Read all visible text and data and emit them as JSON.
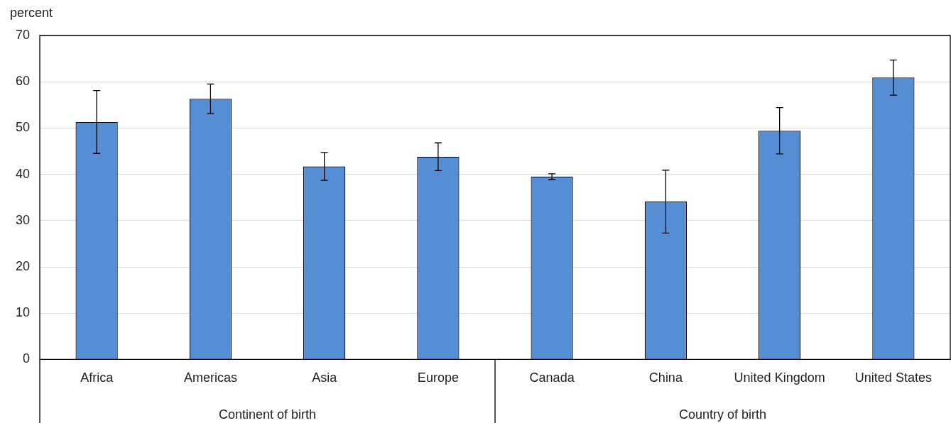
{
  "chart_data": {
    "type": "bar",
    "ylabel": "percent",
    "categories": [
      "Africa",
      "Americas",
      "Asia",
      "Europe",
      "Canada",
      "China",
      "United Kingdom",
      "United States"
    ],
    "values": [
      51.3,
      56.3,
      41.7,
      43.8,
      39.5,
      34.1,
      49.4,
      60.9
    ],
    "errors": [
      6.8,
      3.2,
      3.0,
      3.0,
      0.6,
      6.8,
      5.0,
      3.8
    ],
    "color": "#558ed5",
    "ylim": [
      0,
      70
    ],
    "yticks": [
      0,
      10,
      20,
      30,
      40,
      50,
      60,
      70
    ],
    "grid": "y",
    "legend": false,
    "annotations": [
      "Continent of birth",
      "Country of birth"
    ]
  }
}
